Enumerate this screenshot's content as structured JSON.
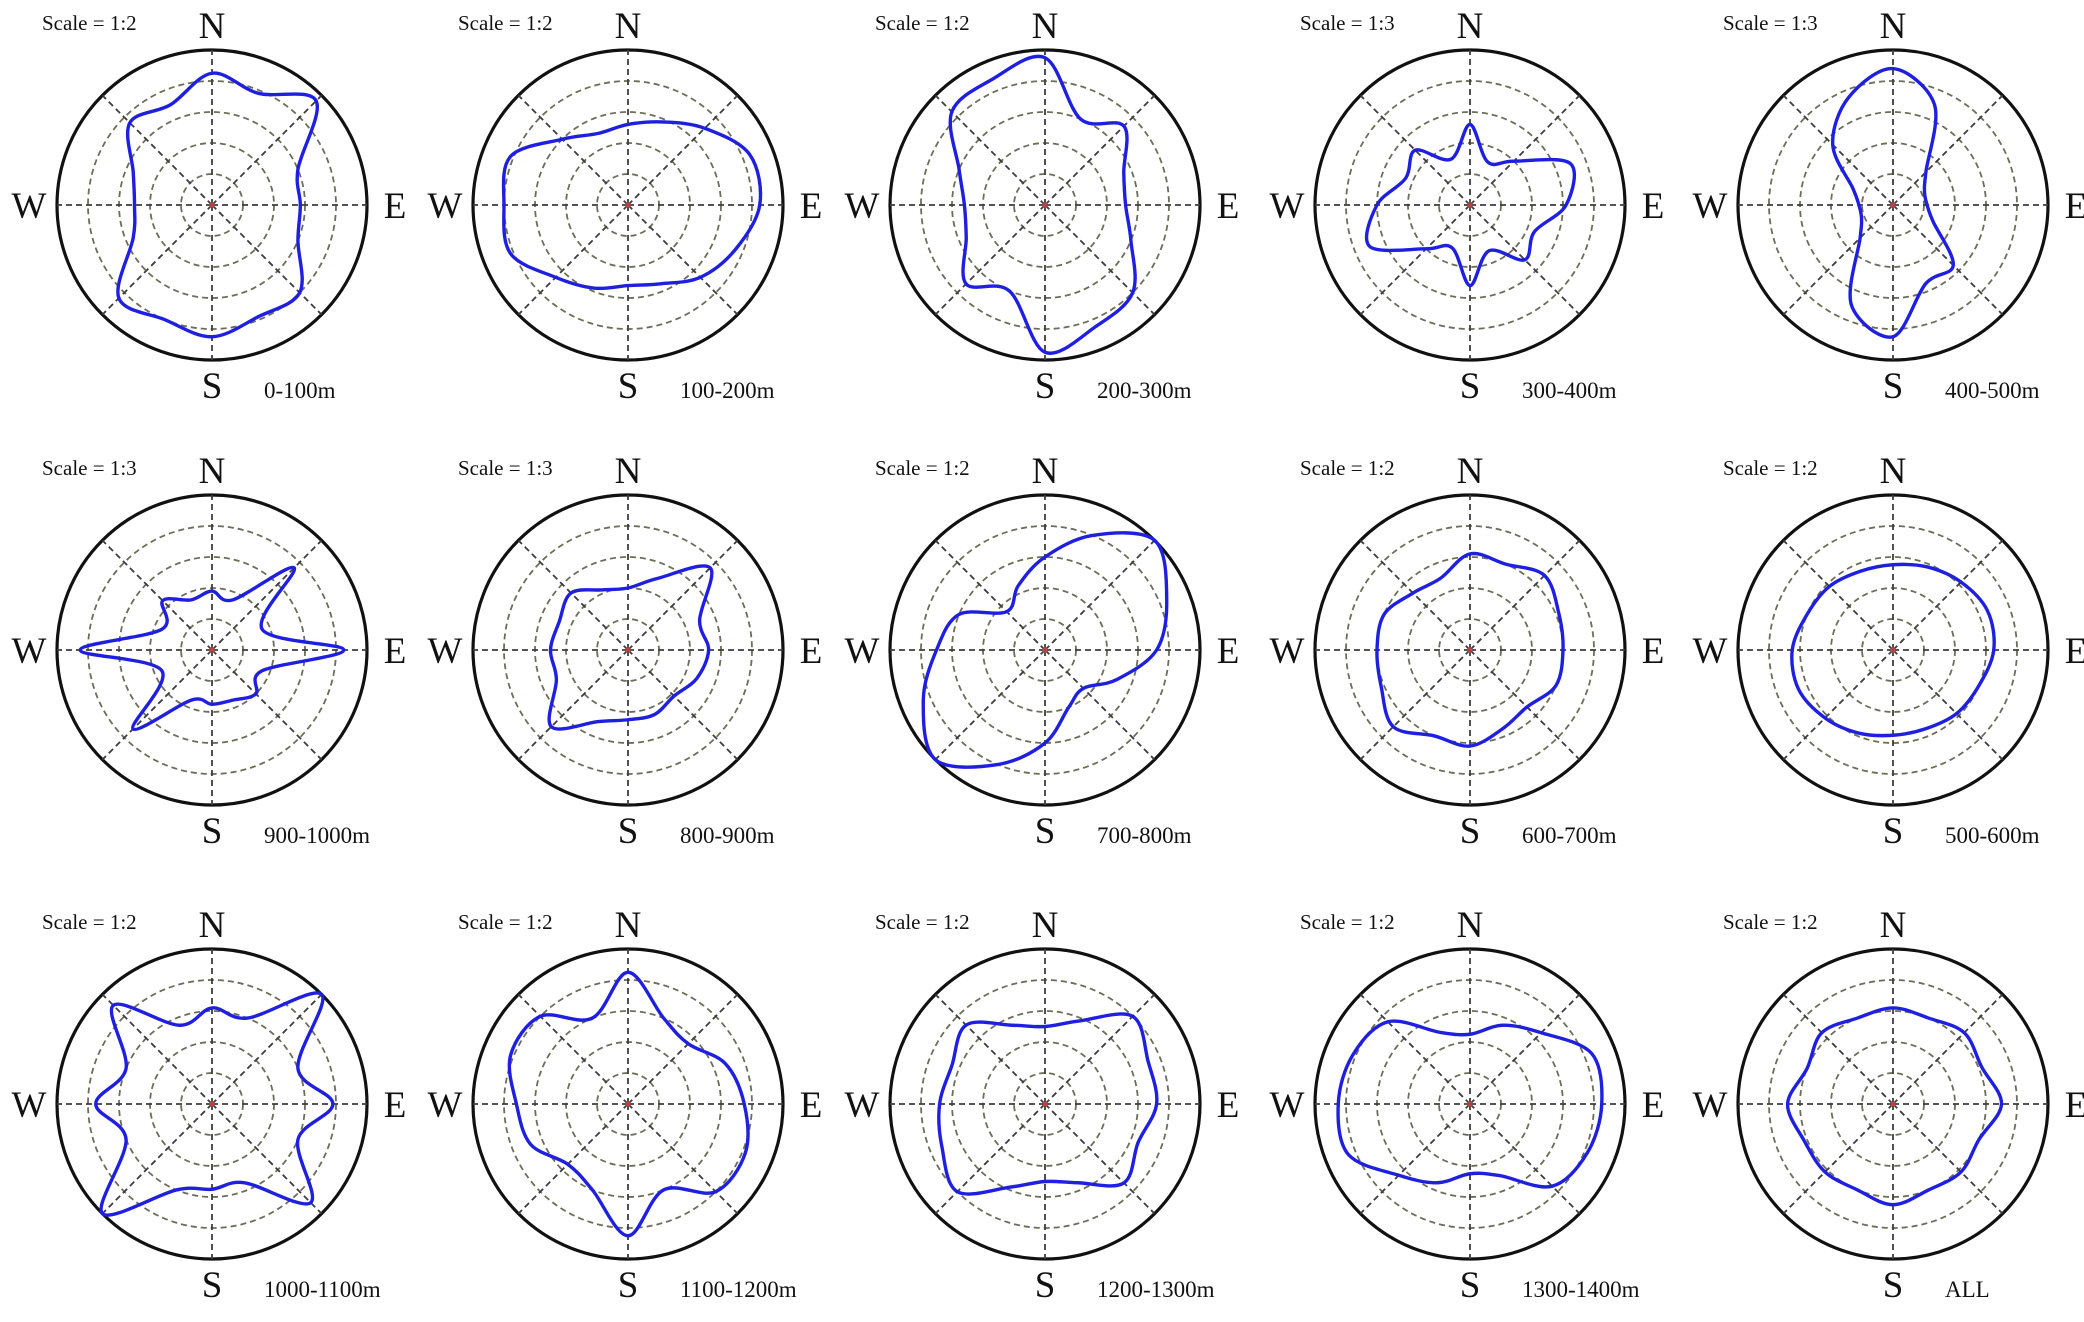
{
  "figure": {
    "curve_color": "#1f1fe0",
    "direction_labels": [
      "N",
      "E",
      "S",
      "W"
    ]
  },
  "chart_data": [
    {
      "type": "polar-line",
      "scale": "Scale = 1:2",
      "range": "0-100m",
      "angles_deg": [
        0,
        22.5,
        45,
        67.5,
        90,
        112.5,
        135,
        157.5,
        180,
        202.5,
        225,
        247.5,
        270,
        292.5,
        315,
        337.5
      ],
      "r": [
        0.85,
        0.78,
        0.95,
        0.6,
        0.57,
        0.6,
        0.8,
        0.78,
        0.85,
        0.8,
        0.85,
        0.55,
        0.5,
        0.55,
        0.75,
        0.7
      ]
    },
    {
      "type": "polar-line",
      "scale": "Scale = 1:2",
      "range": "100-200m",
      "angles_deg": [
        0,
        22.5,
        45,
        67.5,
        90,
        112.5,
        135,
        157.5,
        180,
        202.5,
        225,
        247.5,
        270,
        292.5,
        315,
        337.5
      ],
      "r": [
        0.52,
        0.58,
        0.7,
        0.85,
        0.85,
        0.75,
        0.66,
        0.55,
        0.52,
        0.58,
        0.66,
        0.82,
        0.8,
        0.82,
        0.6,
        0.5
      ]
    },
    {
      "type": "polar-line",
      "scale": "Scale = 1:2",
      "range": "200-300m",
      "angles_deg": [
        0,
        22.5,
        45,
        67.5,
        90,
        112.5,
        135,
        157.5,
        180,
        202.5,
        225,
        247.5,
        270,
        292.5,
        315,
        337.5
      ],
      "r": [
        0.95,
        0.6,
        0.72,
        0.55,
        0.52,
        0.6,
        0.8,
        0.85,
        0.95,
        0.6,
        0.72,
        0.55,
        0.52,
        0.6,
        0.85,
        0.88
      ]
    },
    {
      "type": "polar-line",
      "scale": "Scale = 1:3",
      "range": "300-400m",
      "angles_deg": [
        0,
        22.5,
        45,
        67.5,
        90,
        112.5,
        135,
        157.5,
        180,
        202.5,
        225,
        247.5,
        270,
        292.5,
        315,
        337.5
      ],
      "r": [
        0.52,
        0.3,
        0.4,
        0.7,
        0.62,
        0.45,
        0.5,
        0.32,
        0.52,
        0.3,
        0.4,
        0.7,
        0.6,
        0.45,
        0.5,
        0.32
      ]
    },
    {
      "type": "polar-line",
      "scale": "Scale = 1:3",
      "range": "400-500m",
      "angles_deg": [
        0,
        22.5,
        45,
        67.5,
        90,
        112.5,
        135,
        157.5,
        180,
        202.5,
        225,
        247.5,
        270,
        292.5,
        315,
        337.5
      ],
      "r": [
        0.88,
        0.7,
        0.3,
        0.22,
        0.22,
        0.28,
        0.55,
        0.55,
        0.85,
        0.7,
        0.3,
        0.22,
        0.22,
        0.28,
        0.55,
        0.75
      ]
    },
    {
      "type": "polar-line",
      "scale": "Scale = 1:3",
      "range": "900-1000m",
      "angles_deg": [
        0,
        22.5,
        45,
        67.5,
        90,
        112.5,
        135,
        157.5,
        180,
        202.5,
        225,
        247.5,
        270,
        292.5,
        315,
        337.5
      ],
      "r": [
        0.38,
        0.35,
        0.75,
        0.35,
        0.85,
        0.35,
        0.4,
        0.35,
        0.35,
        0.35,
        0.72,
        0.35,
        0.85,
        0.35,
        0.45,
        0.35
      ]
    },
    {
      "type": "polar-line",
      "scale": "Scale = 1:3",
      "range": "800-900m",
      "angles_deg": [
        0,
        22.5,
        45,
        67.5,
        90,
        112.5,
        135,
        157.5,
        180,
        202.5,
        225,
        247.5,
        270,
        292.5,
        315,
        337.5
      ],
      "r": [
        0.4,
        0.5,
        0.75,
        0.5,
        0.52,
        0.48,
        0.42,
        0.45,
        0.45,
        0.5,
        0.7,
        0.5,
        0.5,
        0.48,
        0.52,
        0.42
      ]
    },
    {
      "type": "polar-line",
      "scale": "Scale = 1:2",
      "range": "700-800m",
      "angles_deg": [
        0,
        22.5,
        45,
        67.5,
        90,
        112.5,
        135,
        157.5,
        180,
        202.5,
        225,
        247.5,
        270,
        292.5,
        315,
        337.5
      ],
      "r": [
        0.6,
        0.8,
        1.0,
        0.85,
        0.72,
        0.5,
        0.35,
        0.4,
        0.6,
        0.8,
        1.0,
        0.85,
        0.7,
        0.6,
        0.35,
        0.45
      ]
    },
    {
      "type": "polar-line",
      "scale": "Scale = 1:2",
      "range": "600-700m",
      "angles_deg": [
        0,
        22.5,
        45,
        67.5,
        90,
        112.5,
        135,
        157.5,
        180,
        202.5,
        225,
        247.5,
        270,
        292.5,
        315,
        337.5
      ],
      "r": [
        0.62,
        0.6,
        0.68,
        0.62,
        0.6,
        0.6,
        0.52,
        0.55,
        0.62,
        0.6,
        0.7,
        0.62,
        0.6,
        0.6,
        0.52,
        0.5
      ]
    },
    {
      "type": "polar-line",
      "scale": "Scale = 1:2",
      "range": "500-600m",
      "angles_deg": [
        0,
        22.5,
        45,
        67.5,
        90,
        112.5,
        135,
        157.5,
        180,
        202.5,
        225,
        247.5,
        270,
        292.5,
        315,
        337.5
      ],
      "r": [
        0.55,
        0.58,
        0.62,
        0.66,
        0.65,
        0.6,
        0.58,
        0.55,
        0.55,
        0.58,
        0.62,
        0.66,
        0.65,
        0.6,
        0.58,
        0.55
      ]
    },
    {
      "type": "polar-line",
      "scale": "Scale = 1:2",
      "range": "1000-1100m",
      "angles_deg": [
        0,
        22.5,
        45,
        67.5,
        90,
        112.5,
        135,
        157.5,
        180,
        202.5,
        225,
        247.5,
        270,
        292.5,
        315,
        337.5
      ],
      "r": [
        0.62,
        0.6,
        1.0,
        0.6,
        0.78,
        0.6,
        0.9,
        0.55,
        0.55,
        0.6,
        1.0,
        0.6,
        0.75,
        0.6,
        0.9,
        0.55
      ]
    },
    {
      "type": "polar-line",
      "scale": "Scale = 1:2",
      "range": "1100-1200m",
      "angles_deg": [
        0,
        22.5,
        45,
        67.5,
        90,
        112.5,
        135,
        157.5,
        180,
        202.5,
        225,
        247.5,
        270,
        292.5,
        315,
        337.5
      ],
      "r": [
        0.85,
        0.6,
        0.55,
        0.68,
        0.75,
        0.82,
        0.8,
        0.6,
        0.85,
        0.6,
        0.55,
        0.68,
        0.72,
        0.82,
        0.8,
        0.6
      ]
    },
    {
      "type": "polar-line",
      "scale": "Scale = 1:2",
      "range": "1200-1300m",
      "angles_deg": [
        0,
        22.5,
        45,
        67.5,
        90,
        112.5,
        135,
        157.5,
        180,
        202.5,
        225,
        247.5,
        270,
        292.5,
        315,
        337.5
      ],
      "r": [
        0.5,
        0.58,
        0.8,
        0.72,
        0.72,
        0.65,
        0.72,
        0.55,
        0.5,
        0.58,
        0.8,
        0.72,
        0.68,
        0.65,
        0.72,
        0.55
      ]
    },
    {
      "type": "polar-line",
      "scale": "Scale = 1:2",
      "range": "1300-1400m",
      "angles_deg": [
        0,
        22.5,
        45,
        67.5,
        90,
        112.5,
        135,
        157.5,
        180,
        202.5,
        225,
        247.5,
        270,
        292.5,
        315,
        337.5
      ],
      "r": [
        0.45,
        0.55,
        0.65,
        0.85,
        0.85,
        0.82,
        0.75,
        0.5,
        0.45,
        0.55,
        0.65,
        0.85,
        0.85,
        0.82,
        0.75,
        0.5
      ]
    },
    {
      "type": "polar-line",
      "scale": "Scale = 1:2",
      "range": "ALL",
      "angles_deg": [
        0,
        22.5,
        45,
        67.5,
        90,
        112.5,
        135,
        157.5,
        180,
        202.5,
        225,
        247.5,
        270,
        292.5,
        315,
        337.5
      ],
      "r": [
        0.62,
        0.6,
        0.65,
        0.62,
        0.7,
        0.6,
        0.62,
        0.6,
        0.65,
        0.6,
        0.62,
        0.62,
        0.68,
        0.6,
        0.65,
        0.6
      ]
    }
  ]
}
